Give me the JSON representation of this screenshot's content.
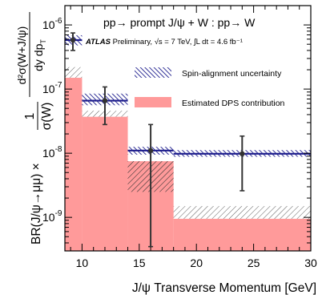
{
  "chart_data": {
    "type": "bar",
    "title": "pp→ prompt J/ψ + W : pp→ W",
    "subtitle_prefix": "ATLAS",
    "subtitle_rest": " Preliminary, √s = 7 TeV, ∫L dt = 4.6 fb⁻¹",
    "xlabel": "J/ψ Transverse Momentum [GeV]",
    "ylabel_left": "BR(J/ψ→μμ) ×",
    "ylabel_frac_num": "1",
    "ylabel_frac_den": "σ(W)",
    "ylabel_frac2_num": "d²σ(W+J/ψ)",
    "ylabel_frac2_den": "dy dp",
    "ylabel_frac2_den_sub": "T",
    "xlim": [
      8.5,
      30
    ],
    "ylim": [
      3e-10,
      2e-06
    ],
    "y_scale": "log",
    "x_ticks": [
      10,
      15,
      20,
      25,
      30
    ],
    "y_ticks": [
      {
        "value": 1e-09,
        "mantissa": "10",
        "exp": "-9"
      },
      {
        "value": 1e-08,
        "mantissa": "10",
        "exp": "-8"
      },
      {
        "value": 1e-07,
        "mantissa": "10",
        "exp": "-7"
      },
      {
        "value": 1e-06,
        "mantissa": "10",
        "exp": "-6"
      }
    ],
    "bins": [
      {
        "xlo": 8.5,
        "xhi": 10,
        "x": 9.2,
        "y": 5.8e-07,
        "err_lo": 4e-07,
        "err_hi": 7.5e-07,
        "spin_lo": 4.8e-07,
        "spin_hi": 6.9e-07,
        "dps": 1.5e-07,
        "dps_unc_lo": 1.5e-07,
        "dps_unc_hi": 2.2e-07
      },
      {
        "xlo": 10,
        "xhi": 14,
        "x": 12,
        "y": 6.6e-08,
        "err_lo": 2.8e-08,
        "err_hi": 1.08e-07,
        "spin_lo": 5.6e-08,
        "spin_hi": 8.5e-08,
        "dps": 3.7e-08,
        "dps_unc_lo": 3.7e-08,
        "dps_unc_hi": 4.6e-08
      },
      {
        "xlo": 14,
        "xhi": 18,
        "x": 16,
        "y": 1.1e-08,
        "err_lo": 3.5e-10,
        "err_hi": 2.8e-08,
        "spin_lo": 9.5e-09,
        "spin_hi": 1.26e-08,
        "dps": 7.5e-09,
        "dps_unc_lo": 2.5e-09,
        "dps_unc_hi": 7.5e-09
      },
      {
        "xlo": 18,
        "xhi": 30,
        "x": 24,
        "y": 9.8e-09,
        "err_lo": 2.6e-09,
        "err_hi": 1.85e-08,
        "spin_lo": 8.8e-09,
        "spin_hi": 1.12e-08,
        "dps": 9.5e-10,
        "dps_unc_lo": 9.5e-10,
        "dps_unc_hi": 1.5e-09
      }
    ],
    "legend": [
      {
        "label": "Spin-alignment uncertainty",
        "kind": "spin"
      },
      {
        "label": "Estimated DPS contribution",
        "kind": "dps"
      }
    ],
    "colors": {
      "data": "#000000",
      "spin": "#1c1c8c",
      "dps_fill": "#ff9a9a",
      "dps_hatch": "#333333",
      "error_bar": "#333333"
    }
  }
}
